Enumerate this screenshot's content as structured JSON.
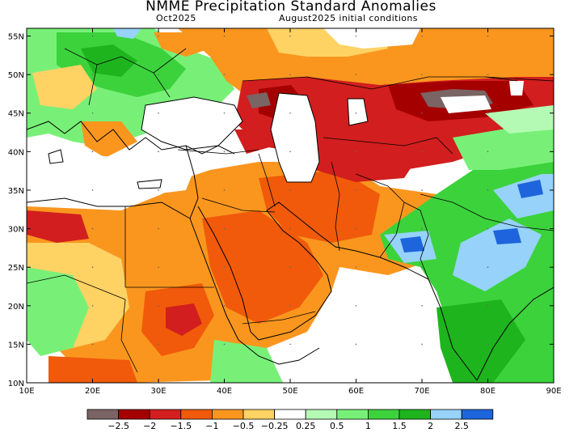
{
  "header": {
    "title": "NMME Precipitation Standard Anomalies",
    "target_month": "Oct2025",
    "init": "August2025 initial conditions"
  },
  "map": {
    "lon_range": [
      10,
      90
    ],
    "lat_range": [
      10,
      56
    ],
    "lat_ticks": [
      {
        "value": 55,
        "label": "55N"
      },
      {
        "value": 50,
        "label": "50N"
      },
      {
        "value": 45,
        "label": "45N"
      },
      {
        "value": 40,
        "label": "40N"
      },
      {
        "value": 35,
        "label": "35N"
      },
      {
        "value": 30,
        "label": "30N"
      },
      {
        "value": 25,
        "label": "25N"
      },
      {
        "value": 20,
        "label": "20N"
      },
      {
        "value": 15,
        "label": "15N"
      },
      {
        "value": 10,
        "label": "10N"
      }
    ],
    "lon_ticks": [
      {
        "value": 10,
        "label": "10E"
      },
      {
        "value": 20,
        "label": "20E"
      },
      {
        "value": 30,
        "label": "30E"
      },
      {
        "value": 40,
        "label": "40E"
      },
      {
        "value": 50,
        "label": "50E"
      },
      {
        "value": 60,
        "label": "60E"
      },
      {
        "value": 70,
        "label": "70E"
      },
      {
        "value": 80,
        "label": "80E"
      },
      {
        "value": 90,
        "label": "90E"
      }
    ],
    "colors": {
      "lt_m25": "#7a6464",
      "m25_m2": "#a50000",
      "m2_m15": "#d21e1e",
      "m15_m1": "#f05a0a",
      "m1_m05": "#fa961e",
      "m05_m025": "#ffd264",
      "p025_05": "#b4fab4",
      "p05_1": "#78f078",
      "p1_15": "#3cd23c",
      "p15_2": "#1eb41e",
      "p2_25": "#96d2fa",
      "gt_25": "#1e64dc"
    }
  },
  "colorbar": {
    "colors": [
      "#7a6464",
      "#a50000",
      "#d21e1e",
      "#f05a0a",
      "#fa961e",
      "#ffd264",
      "#ffffff",
      "#b4fab4",
      "#78f078",
      "#3cd23c",
      "#1eb41e",
      "#96d2fa",
      "#1e64dc"
    ],
    "labels": [
      "−2.5",
      "−2",
      "−1.5",
      "−1",
      "−0.5",
      "−0.25",
      "0.25",
      "0.5",
      "1",
      "1.5",
      "2",
      "2.5"
    ]
  }
}
